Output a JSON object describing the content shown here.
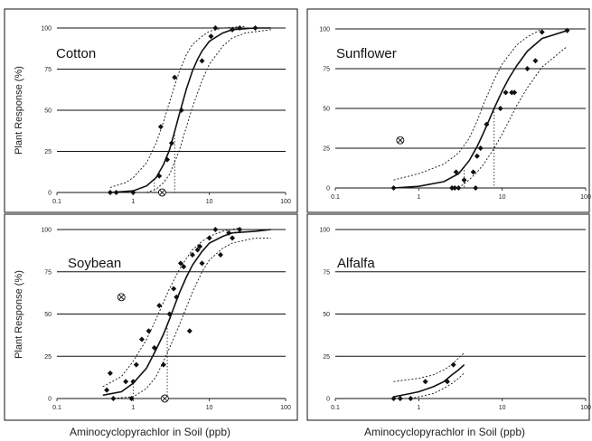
{
  "figure": {
    "y_axis_label": "Plant Response (%)",
    "x_axis_label": "Aminocyclopyrachlor in Soil (ppb)"
  },
  "chart_data": [
    {
      "type": "scatter",
      "title": "Cotton",
      "xlabel": "",
      "ylabel": "Plant Response (%)",
      "xscale": "log",
      "xlim": [
        0.1,
        100
      ],
      "ylim": [
        0,
        100
      ],
      "xticks": [
        "0.1",
        "1",
        "10",
        "100"
      ],
      "yticks": [
        "0",
        "25",
        "50",
        "75",
        "100"
      ],
      "grid": "horizontal",
      "points": [
        [
          0.5,
          0
        ],
        [
          0.6,
          0
        ],
        [
          1.0,
          0
        ],
        [
          2.2,
          10
        ],
        [
          2.3,
          40
        ],
        [
          2.8,
          20
        ],
        [
          3.2,
          30
        ],
        [
          3.5,
          70
        ],
        [
          4.3,
          50
        ],
        [
          8.0,
          80
        ],
        [
          10.5,
          95
        ],
        [
          12,
          100
        ],
        [
          20,
          99
        ],
        [
          25,
          100
        ],
        [
          40,
          100
        ]
      ],
      "outliers": [
        [
          2.4,
          0
        ]
      ],
      "fit": [
        [
          0.5,
          0
        ],
        [
          1.0,
          1
        ],
        [
          1.5,
          4
        ],
        [
          2.0,
          9
        ],
        [
          2.5,
          17
        ],
        [
          3.0,
          26
        ],
        [
          3.5,
          37
        ],
        [
          4.0,
          47
        ],
        [
          5.0,
          63
        ],
        [
          6.0,
          74
        ],
        [
          7.0,
          81
        ],
        [
          8.0,
          86
        ],
        [
          10,
          92
        ],
        [
          15,
          97
        ],
        [
          20,
          99
        ],
        [
          40,
          100
        ],
        [
          64,
          100
        ]
      ],
      "ci_lower": [
        [
          1.5,
          0
        ],
        [
          2.0,
          2
        ],
        [
          2.5,
          6
        ],
        [
          3.0,
          11
        ],
        [
          4.0,
          25
        ],
        [
          5.0,
          40
        ],
        [
          6.0,
          52
        ],
        [
          8.0,
          68
        ],
        [
          10,
          78
        ],
        [
          15,
          89
        ],
        [
          20,
          94
        ],
        [
          30,
          97
        ],
        [
          64,
          99
        ]
      ],
      "ci_upper": [
        [
          0.5,
          3
        ],
        [
          0.8,
          6
        ],
        [
          1.0,
          9
        ],
        [
          1.5,
          18
        ],
        [
          2.0,
          30
        ],
        [
          2.5,
          43
        ],
        [
          3.0,
          55
        ],
        [
          3.5,
          65
        ],
        [
          4.0,
          73
        ],
        [
          5.0,
          84
        ],
        [
          6.0,
          90
        ],
        [
          8.0,
          95
        ],
        [
          10,
          98
        ],
        [
          15,
          100
        ],
        [
          30,
          101
        ]
      ],
      "ec_drops": [
        1.9,
        3.5
      ]
    },
    {
      "type": "scatter",
      "title": "Sunflower",
      "xlabel": "",
      "ylabel": "",
      "xscale": "log",
      "xlim": [
        0.1,
        100
      ],
      "ylim": [
        0,
        100
      ],
      "xticks": [
        "0.1",
        "1",
        "10",
        "100"
      ],
      "yticks": [
        "0",
        "25",
        "50",
        "75",
        "100"
      ],
      "grid": "horizontal",
      "points": [
        [
          0.5,
          0
        ],
        [
          2.5,
          0
        ],
        [
          2.7,
          0
        ],
        [
          2.8,
          10
        ],
        [
          3.0,
          0
        ],
        [
          3.5,
          5
        ],
        [
          4.5,
          10
        ],
        [
          4.8,
          0
        ],
        [
          5.0,
          20
        ],
        [
          5.5,
          25
        ],
        [
          6.5,
          40
        ],
        [
          9.5,
          50
        ],
        [
          11,
          60
        ],
        [
          13,
          60
        ],
        [
          14,
          60
        ],
        [
          20,
          75
        ],
        [
          25,
          80
        ],
        [
          30,
          98
        ],
        [
          60,
          99
        ]
      ],
      "outliers": [
        [
          0.6,
          30
        ]
      ],
      "fit": [
        [
          0.5,
          0
        ],
        [
          1.0,
          1
        ],
        [
          2.0,
          4
        ],
        [
          3.0,
          9
        ],
        [
          4.0,
          17
        ],
        [
          5.0,
          26
        ],
        [
          6.0,
          35
        ],
        [
          7.0,
          43
        ],
        [
          8.0,
          50
        ],
        [
          10,
          61
        ],
        [
          12,
          69
        ],
        [
          15,
          77
        ],
        [
          20,
          86
        ],
        [
          30,
          94
        ],
        [
          60,
          99
        ]
      ],
      "ci_lower": [
        [
          3.0,
          0
        ],
        [
          4.0,
          5
        ],
        [
          5.0,
          10
        ],
        [
          6.0,
          15
        ],
        [
          8.0,
          25
        ],
        [
          10,
          34
        ],
        [
          12,
          42
        ],
        [
          15,
          52
        ],
        [
          20,
          63
        ],
        [
          30,
          76
        ],
        [
          60,
          89
        ]
      ],
      "ci_upper": [
        [
          0.5,
          5
        ],
        [
          1.0,
          9
        ],
        [
          2.0,
          15
        ],
        [
          3.0,
          22
        ],
        [
          4.0,
          31
        ],
        [
          5.0,
          42
        ],
        [
          6.0,
          53
        ],
        [
          8.0,
          68
        ],
        [
          10,
          78
        ],
        [
          15,
          90
        ],
        [
          20,
          95
        ],
        [
          30,
          100
        ]
      ],
      "ec_drops": [
        3.5,
        8.0
      ]
    },
    {
      "type": "scatter",
      "title": "Soybean",
      "xlabel": "Aminocyclopyrachlor in Soil (ppb)",
      "ylabel": "Plant Response (%)",
      "xscale": "log",
      "xlim": [
        0.1,
        100
      ],
      "ylim": [
        0,
        100
      ],
      "xticks": [
        "0.1",
        "1",
        "10",
        "100"
      ],
      "yticks": [
        "0",
        "25",
        "50",
        "75",
        "100"
      ],
      "grid": "horizontal",
      "points": [
        [
          0.45,
          5
        ],
        [
          0.5,
          15
        ],
        [
          0.55,
          0
        ],
        [
          0.8,
          10
        ],
        [
          0.95,
          0
        ],
        [
          1.0,
          10
        ],
        [
          1.1,
          20
        ],
        [
          1.3,
          35
        ],
        [
          1.6,
          40
        ],
        [
          1.9,
          30
        ],
        [
          2.2,
          55
        ],
        [
          2.5,
          20
        ],
        [
          3.0,
          50
        ],
        [
          3.4,
          65
        ],
        [
          3.7,
          60
        ],
        [
          4.2,
          80
        ],
        [
          4.6,
          78
        ],
        [
          5.5,
          40
        ],
        [
          6.0,
          85
        ],
        [
          7.0,
          88
        ],
        [
          7.5,
          90
        ],
        [
          8.0,
          80
        ],
        [
          10,
          95
        ],
        [
          12,
          100
        ],
        [
          14,
          85
        ],
        [
          18,
          98
        ],
        [
          20,
          95
        ],
        [
          25,
          100
        ]
      ],
      "outliers": [
        [
          0.7,
          60
        ],
        [
          2.6,
          0
        ]
      ],
      "fit": [
        [
          0.4,
          2
        ],
        [
          0.7,
          4
        ],
        [
          1.0,
          9
        ],
        [
          1.5,
          18
        ],
        [
          2.0,
          29
        ],
        [
          2.5,
          38
        ],
        [
          3.0,
          47
        ],
        [
          3.5,
          55
        ],
        [
          4.0,
          62
        ],
        [
          5.0,
          72
        ],
        [
          6.0,
          79
        ],
        [
          8.0,
          87
        ],
        [
          10,
          92
        ],
        [
          15,
          96
        ],
        [
          20,
          98
        ],
        [
          40,
          99
        ],
        [
          64,
          100
        ]
      ],
      "ci_lower": [
        [
          0.5,
          0
        ],
        [
          1.0,
          1
        ],
        [
          1.5,
          6
        ],
        [
          2.0,
          13
        ],
        [
          2.5,
          22
        ],
        [
          3.0,
          30
        ],
        [
          4.0,
          43
        ],
        [
          5.0,
          54
        ],
        [
          6.0,
          63
        ],
        [
          8.0,
          75
        ],
        [
          10,
          82
        ],
        [
          15,
          89
        ],
        [
          20,
          92
        ],
        [
          40,
          95
        ],
        [
          64,
          95
        ]
      ],
      "ci_upper": [
        [
          0.4,
          7
        ],
        [
          0.7,
          13
        ],
        [
          1.0,
          22
        ],
        [
          1.5,
          35
        ],
        [
          2.0,
          47
        ],
        [
          2.5,
          57
        ],
        [
          3.0,
          65
        ],
        [
          4.0,
          76
        ],
        [
          5.0,
          83
        ],
        [
          6.0,
          88
        ],
        [
          8.0,
          93
        ],
        [
          10,
          96
        ],
        [
          15,
          99
        ],
        [
          25,
          101
        ]
      ],
      "ec_drops": [
        1.0,
        2.8
      ]
    },
    {
      "type": "scatter",
      "title": "Alfalfa",
      "xlabel": "Aminocyclopyrachlor in Soil (ppb)",
      "ylabel": "",
      "xscale": "log",
      "xlim": [
        0.1,
        100
      ],
      "ylim": [
        0,
        100
      ],
      "xticks": [
        "0.1",
        "1",
        "10",
        "100"
      ],
      "yticks": [
        "0",
        "25",
        "50",
        "75",
        "100"
      ],
      "grid": "horizontal",
      "points": [
        [
          0.5,
          0
        ],
        [
          0.6,
          0
        ],
        [
          0.8,
          0
        ],
        [
          1.2,
          10
        ],
        [
          2.2,
          10
        ],
        [
          2.6,
          20
        ]
      ],
      "outliers": [],
      "fit": [
        [
          0.5,
          1
        ],
        [
          0.8,
          3
        ],
        [
          1.0,
          4
        ],
        [
          1.5,
          7
        ],
        [
          2.0,
          10
        ],
        [
          2.5,
          14
        ],
        [
          3.0,
          17
        ],
        [
          3.5,
          20
        ]
      ],
      "ci_lower": [
        [
          0.8,
          0
        ],
        [
          1.0,
          1
        ],
        [
          1.5,
          3
        ],
        [
          2.0,
          6
        ],
        [
          2.5,
          9
        ],
        [
          3.0,
          12
        ],
        [
          3.5,
          15
        ]
      ],
      "ci_upper": [
        [
          0.5,
          10
        ],
        [
          1.0,
          12
        ],
        [
          1.5,
          14
        ],
        [
          2.0,
          17
        ],
        [
          2.5,
          20
        ],
        [
          3.0,
          24
        ],
        [
          3.5,
          27
        ]
      ],
      "ec_drops": []
    }
  ]
}
